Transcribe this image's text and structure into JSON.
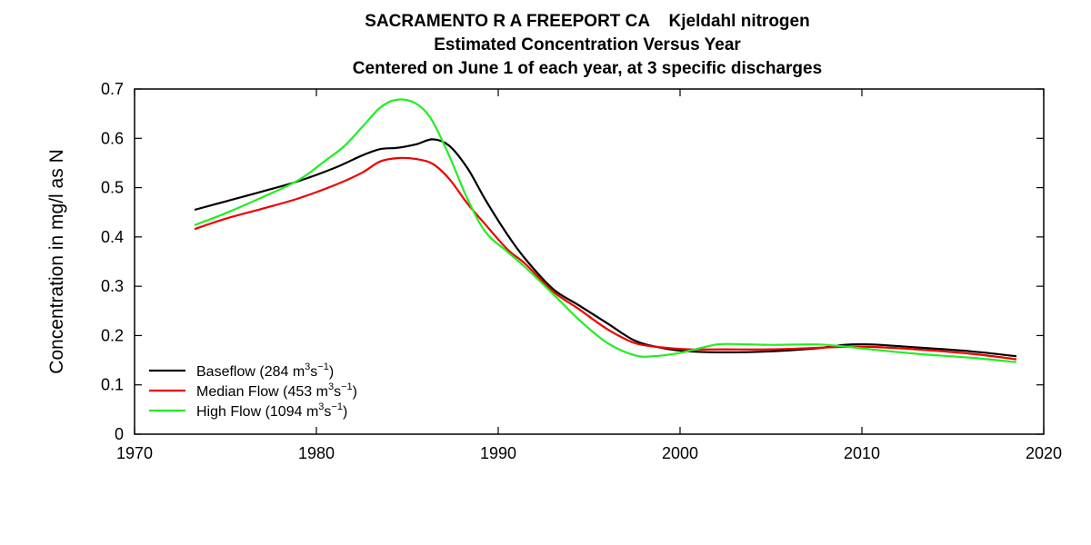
{
  "chart_data": {
    "type": "line",
    "title": [
      "SACRAMENTO R A FREEPORT CA    Kjeldahl nitrogen",
      "Estimated Concentration Versus Year",
      "Centered on June 1 of each year, at 3 specific discharges"
    ],
    "xlabel": "",
    "ylabel": "Concentration in mg/l as N",
    "xlim": [
      1970,
      2020
    ],
    "ylim": [
      0,
      0.7
    ],
    "xticks": [
      "1970",
      "1980",
      "1990",
      "2000",
      "2010",
      "2020"
    ],
    "yticks": [
      "0",
      "0.1",
      "0.2",
      "0.3",
      "0.4",
      "0.5",
      "0.6",
      "0.7"
    ],
    "legend_position": "bottom-left",
    "series": [
      {
        "name": "Baseflow",
        "legend": {
          "prefix": "Baseflow (284 m",
          "unit_exp1": "3",
          "mid": "s",
          "unit_exp2": "−1",
          "suffix": ")"
        },
        "color": "#000000",
        "x": [
          1973.3,
          1975,
          1977,
          1979,
          1981,
          1982.5,
          1983.5,
          1984.5,
          1985.5,
          1986.4,
          1987.3,
          1988.3,
          1989.3,
          1990.5,
          1991.5,
          1993,
          1994.5,
          1996,
          1997.5,
          1999,
          2000.5,
          2002.5,
          2005,
          2007.5,
          2009,
          2010.5,
          2013,
          2016,
          2018.5
        ],
        "y": [
          0.455,
          0.472,
          0.492,
          0.513,
          0.54,
          0.565,
          0.578,
          0.581,
          0.588,
          0.598,
          0.585,
          0.54,
          0.475,
          0.405,
          0.355,
          0.295,
          0.26,
          0.225,
          0.19,
          0.175,
          0.168,
          0.166,
          0.168,
          0.174,
          0.181,
          0.182,
          0.176,
          0.168,
          0.158
        ]
      },
      {
        "name": "Median Flow",
        "legend": {
          "prefix": "Median Flow (453 m",
          "unit_exp1": "3",
          "mid": "s",
          "unit_exp2": "−1",
          "suffix": ")"
        },
        "color": "#ee0000",
        "x": [
          1973.3,
          1975,
          1977,
          1979,
          1981,
          1982.5,
          1983.5,
          1984.5,
          1985.5,
          1986.4,
          1987.3,
          1988.3,
          1989.3,
          1990.5,
          1991.5,
          1993,
          1994.5,
          1996,
          1997.5,
          1999,
          2000.5,
          2002.5,
          2005,
          2007.5,
          2009,
          2010.5,
          2013,
          2016,
          2018.5
        ],
        "y": [
          0.416,
          0.437,
          0.457,
          0.478,
          0.505,
          0.53,
          0.553,
          0.56,
          0.558,
          0.548,
          0.518,
          0.468,
          0.425,
          0.375,
          0.345,
          0.29,
          0.252,
          0.213,
          0.185,
          0.176,
          0.172,
          0.172,
          0.172,
          0.175,
          0.177,
          0.177,
          0.172,
          0.163,
          0.152
        ]
      },
      {
        "name": "High Flow",
        "legend": {
          "prefix": "High Flow (1094 m",
          "unit_exp1": "3",
          "mid": "s",
          "unit_exp2": "−1",
          "suffix": ")"
        },
        "color": "#22ee22",
        "x": [
          1973.3,
          1975,
          1977,
          1979,
          1980.5,
          1981.5,
          1982.5,
          1983.5,
          1984.4,
          1985.4,
          1986.3,
          1987.3,
          1988.3,
          1989.3,
          1990.5,
          1991.5,
          1993,
          1994.5,
          1996,
          1997.5,
          1998.5,
          2000,
          2001.5,
          2002.5,
          2005,
          2007.5,
          2009,
          2010.5,
          2013,
          2016,
          2018.5
        ],
        "y": [
          0.424,
          0.448,
          0.48,
          0.515,
          0.555,
          0.583,
          0.622,
          0.662,
          0.678,
          0.672,
          0.64,
          0.565,
          0.478,
          0.41,
          0.37,
          0.338,
          0.285,
          0.23,
          0.185,
          0.16,
          0.158,
          0.165,
          0.178,
          0.183,
          0.181,
          0.182,
          0.178,
          0.172,
          0.163,
          0.155,
          0.146
        ]
      }
    ]
  }
}
